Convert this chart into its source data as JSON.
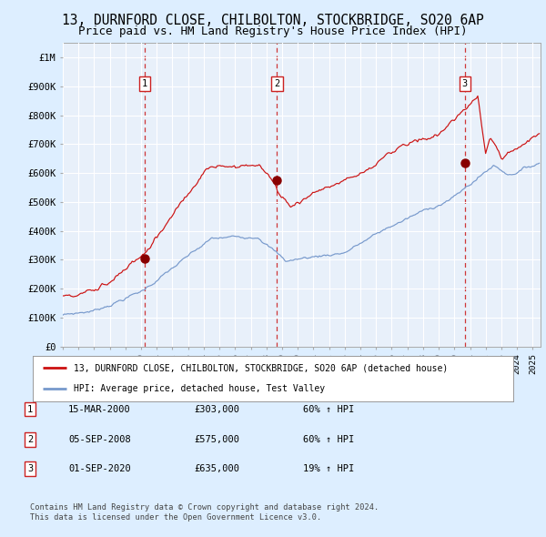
{
  "title": "13, DURNFORD CLOSE, CHILBOLTON, STOCKBRIDGE, SO20 6AP",
  "subtitle": "Price paid vs. HM Land Registry's House Price Index (HPI)",
  "title_fontsize": 10.5,
  "subtitle_fontsize": 9,
  "xlim_start": 1995.0,
  "xlim_end": 2025.5,
  "ylim_min": 0,
  "ylim_max": 1050000,
  "yticks": [
    0,
    100000,
    200000,
    300000,
    400000,
    500000,
    600000,
    700000,
    800000,
    900000,
    1000000
  ],
  "ytick_labels": [
    "£0",
    "£100K",
    "£200K",
    "£300K",
    "£400K",
    "£500K",
    "£600K",
    "£700K",
    "£800K",
    "£900K",
    "£1M"
  ],
  "hpi_color": "#7799cc",
  "price_color": "#cc1111",
  "sale_marker_color": "#880000",
  "dashed_line_color": "#cc2222",
  "bg_color": "#ddeeff",
  "plot_bg_color": "#e8f0fa",
  "grid_color": "#ffffff",
  "sales": [
    {
      "date_num": 2000.21,
      "price": 303000,
      "label": "1",
      "date_str": "15-MAR-2000",
      "hpi_pct": "60%"
    },
    {
      "date_num": 2008.68,
      "price": 575000,
      "label": "2",
      "date_str": "05-SEP-2008",
      "hpi_pct": "60%"
    },
    {
      "date_num": 2020.67,
      "price": 635000,
      "label": "3",
      "date_str": "01-SEP-2020",
      "hpi_pct": "19%"
    }
  ],
  "legend_line1": "13, DURNFORD CLOSE, CHILBOLTON, STOCKBRIDGE, SO20 6AP (detached house)",
  "legend_line2": "HPI: Average price, detached house, Test Valley",
  "footer1": "Contains HM Land Registry data © Crown copyright and database right 2024.",
  "footer2": "This data is licensed under the Open Government Licence v3.0.",
  "table_rows": [
    [
      "1",
      "15-MAR-2000",
      "£303,000",
      "60% ↑ HPI"
    ],
    [
      "2",
      "05-SEP-2008",
      "£575,000",
      "60% ↑ HPI"
    ],
    [
      "3",
      "01-SEP-2020",
      "£635,000",
      "19% ↑ HPI"
    ]
  ]
}
